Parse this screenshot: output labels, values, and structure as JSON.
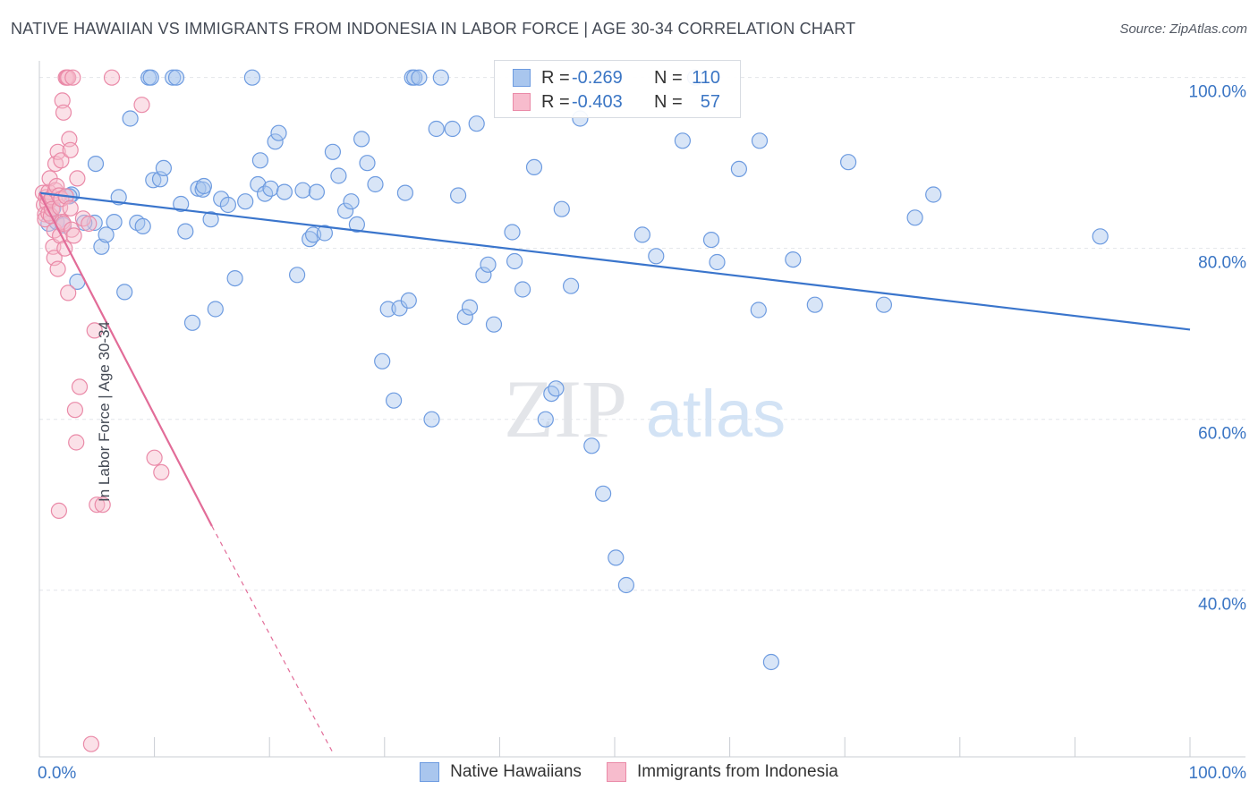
{
  "title": "NATIVE HAWAIIAN VS IMMIGRANTS FROM INDONESIA IN LABOR FORCE | AGE 30-34 CORRELATION CHART",
  "source": "Source: ZipAtlas.com",
  "watermark": {
    "zip": "ZIP",
    "atlas": "atlas"
  },
  "colors": {
    "blue_fill": "#a9c6ee",
    "blue_stroke": "#6d9be0",
    "blue_line": "#3a75cc",
    "pink_fill": "#f7bccd",
    "pink_stroke": "#ea8aa8",
    "pink_line": "#e26c98",
    "axis_text": "#3a75c4",
    "grid": "#e2e5ea"
  },
  "legend": {
    "rows": [
      {
        "r_label": "R =",
        "r_value": "-0.269",
        "n_label": "N =",
        "n_value": "110"
      },
      {
        "r_label": "R =",
        "r_value": "-0.403",
        "n_label": "N =",
        "n_value": "57"
      }
    ]
  },
  "chart_data": {
    "type": "scatter",
    "xlabel": "",
    "ylabel": "In Labor Force | Age 30-34",
    "xlim": [
      0,
      100
    ],
    "ylim": [
      20.5,
      103
    ],
    "x_tick_labels": [
      {
        "value": 0,
        "label": "0.0%"
      },
      {
        "value": 100,
        "label": "100.0%"
      }
    ],
    "y_tick_labels": [
      {
        "value": 100,
        "label": "100.0%"
      },
      {
        "value": 80,
        "label": "80.0%"
      },
      {
        "value": 60,
        "label": "60.0%"
      },
      {
        "value": 40,
        "label": "40.0%"
      }
    ],
    "y_gridlines": [
      100,
      80,
      60,
      40
    ],
    "x_minor_ticks": [
      10,
      20,
      30,
      40,
      50,
      60,
      70,
      80,
      90,
      100
    ],
    "legend_position": "top-center",
    "series": [
      {
        "name": "Native Hawaiians",
        "color": "#a9c6ee",
        "trend": {
          "x0": 0,
          "y0": 86.5,
          "x1": 100,
          "y1": 70.5,
          "style": "solid"
        },
        "points": [
          [
            0.8,
            82.9
          ],
          [
            1.5,
            83.1
          ],
          [
            2.8,
            86.3
          ],
          [
            3.3,
            76.1
          ],
          [
            4.8,
            83.0
          ],
          [
            4.9,
            89.9
          ],
          [
            5.4,
            80.2
          ],
          [
            5.8,
            81.6
          ],
          [
            6.5,
            83.1
          ],
          [
            6.9,
            86.0
          ],
          [
            7.4,
            74.9
          ],
          [
            7.9,
            95.2
          ],
          [
            8.5,
            83.0
          ],
          [
            9.0,
            82.6
          ],
          [
            9.5,
            100.0
          ],
          [
            9.7,
            100.0
          ],
          [
            9.9,
            88.0
          ],
          [
            10.5,
            88.1
          ],
          [
            10.8,
            89.4
          ],
          [
            11.6,
            100.0
          ],
          [
            11.9,
            100.0
          ],
          [
            12.3,
            85.2
          ],
          [
            12.7,
            82.0
          ],
          [
            13.3,
            71.3
          ],
          [
            13.8,
            87.0
          ],
          [
            14.2,
            86.9
          ],
          [
            14.3,
            87.3
          ],
          [
            14.9,
            83.4
          ],
          [
            15.3,
            72.9
          ],
          [
            15.8,
            85.8
          ],
          [
            16.4,
            85.1
          ],
          [
            17.0,
            76.5
          ],
          [
            17.9,
            85.5
          ],
          [
            18.5,
            100.0
          ],
          [
            19.0,
            87.5
          ],
          [
            19.2,
            90.3
          ],
          [
            19.6,
            86.4
          ],
          [
            20.1,
            87.0
          ],
          [
            20.5,
            92.5
          ],
          [
            20.8,
            93.5
          ],
          [
            21.3,
            86.6
          ],
          [
            22.4,
            76.9
          ],
          [
            22.9,
            86.8
          ],
          [
            23.5,
            81.1
          ],
          [
            23.8,
            81.6
          ],
          [
            24.1,
            86.6
          ],
          [
            24.8,
            81.8
          ],
          [
            25.5,
            91.3
          ],
          [
            26.0,
            88.5
          ],
          [
            26.6,
            84.4
          ],
          [
            27.1,
            85.5
          ],
          [
            27.6,
            82.8
          ],
          [
            28.0,
            92.8
          ],
          [
            28.5,
            90.0
          ],
          [
            29.2,
            87.5
          ],
          [
            29.8,
            66.8
          ],
          [
            30.3,
            72.9
          ],
          [
            30.8,
            62.2
          ],
          [
            31.3,
            73.0
          ],
          [
            31.8,
            86.5
          ],
          [
            32.1,
            73.9
          ],
          [
            32.4,
            100.0
          ],
          [
            32.6,
            100.0
          ],
          [
            33.0,
            100.0
          ],
          [
            34.1,
            60.0
          ],
          [
            34.5,
            94.0
          ],
          [
            34.9,
            100.0
          ],
          [
            35.9,
            94.0
          ],
          [
            36.4,
            86.2
          ],
          [
            37.0,
            72.0
          ],
          [
            37.4,
            73.1
          ],
          [
            38.0,
            94.6
          ],
          [
            38.6,
            76.9
          ],
          [
            39.0,
            78.1
          ],
          [
            39.5,
            71.1
          ],
          [
            41.1,
            81.9
          ],
          [
            41.3,
            78.5
          ],
          [
            42.0,
            75.2
          ],
          [
            43.0,
            89.5
          ],
          [
            44.0,
            60.0
          ],
          [
            44.5,
            63.0
          ],
          [
            44.9,
            63.6
          ],
          [
            45.4,
            84.6
          ],
          [
            46.2,
            75.6
          ],
          [
            47.0,
            95.2
          ],
          [
            48.0,
            56.9
          ],
          [
            49.0,
            51.3
          ],
          [
            50.1,
            43.8
          ],
          [
            51.0,
            40.6
          ],
          [
            52.4,
            81.6
          ],
          [
            53.6,
            79.1
          ],
          [
            55.9,
            92.6
          ],
          [
            57.0,
            100.0
          ],
          [
            58.4,
            81.0
          ],
          [
            58.9,
            78.4
          ],
          [
            60.8,
            89.3
          ],
          [
            62.5,
            72.8
          ],
          [
            62.6,
            92.6
          ],
          [
            63.6,
            31.6
          ],
          [
            65.5,
            78.7
          ],
          [
            67.4,
            73.4
          ],
          [
            70.3,
            90.1
          ],
          [
            73.4,
            73.4
          ],
          [
            76.1,
            83.6
          ],
          [
            77.7,
            86.3
          ],
          [
            92.2,
            81.4
          ],
          [
            1.2,
            84.7
          ],
          [
            2.1,
            82.7
          ],
          [
            2.6,
            86.1
          ],
          [
            3.9,
            83.0
          ]
        ]
      },
      {
        "name": "Immigrants from Indonesia",
        "color": "#f7bccd",
        "trend": {
          "x0": 0,
          "y0": 86.5,
          "x1": 15,
          "y1": 47.5,
          "dash_x1": 25.5,
          "dash_y1": 21,
          "style": "solid-then-dashed"
        },
        "points": [
          [
            0.3,
            86.5
          ],
          [
            0.4,
            85.1
          ],
          [
            0.5,
            84.0
          ],
          [
            0.5,
            83.4
          ],
          [
            0.6,
            86.0
          ],
          [
            0.7,
            85.3
          ],
          [
            0.8,
            84.1
          ],
          [
            0.8,
            86.6
          ],
          [
            0.9,
            88.2
          ],
          [
            1.0,
            85.7
          ],
          [
            1.0,
            83.8
          ],
          [
            1.1,
            86.0
          ],
          [
            1.1,
            84.6
          ],
          [
            1.2,
            80.2
          ],
          [
            1.3,
            82.1
          ],
          [
            1.3,
            78.9
          ],
          [
            1.4,
            86.8
          ],
          [
            1.4,
            89.9
          ],
          [
            1.5,
            87.3
          ],
          [
            1.6,
            91.3
          ],
          [
            1.6,
            77.6
          ],
          [
            1.7,
            86.2
          ],
          [
            1.8,
            84.8
          ],
          [
            1.8,
            81.5
          ],
          [
            1.9,
            90.3
          ],
          [
            1.9,
            85.8
          ],
          [
            2.0,
            83.1
          ],
          [
            2.0,
            97.3
          ],
          [
            2.1,
            95.9
          ],
          [
            2.1,
            82.9
          ],
          [
            2.2,
            80.0
          ],
          [
            2.3,
            86.1
          ],
          [
            2.3,
            100.0
          ],
          [
            2.4,
            100.0
          ],
          [
            2.5,
            100.0
          ],
          [
            2.5,
            74.8
          ],
          [
            2.6,
            92.8
          ],
          [
            2.7,
            91.5
          ],
          [
            2.7,
            84.7
          ],
          [
            2.8,
            82.2
          ],
          [
            2.9,
            100.0
          ],
          [
            3.0,
            81.5
          ],
          [
            3.1,
            61.1
          ],
          [
            3.2,
            57.3
          ],
          [
            3.3,
            88.2
          ],
          [
            3.5,
            63.8
          ],
          [
            3.8,
            83.5
          ],
          [
            4.3,
            82.9
          ],
          [
            4.5,
            22.0
          ],
          [
            4.8,
            70.4
          ],
          [
            5.0,
            50.0
          ],
          [
            5.5,
            50.0
          ],
          [
            6.3,
            100.0
          ],
          [
            8.9,
            96.8
          ],
          [
            10.0,
            55.5
          ],
          [
            10.6,
            53.8
          ],
          [
            1.7,
            49.3
          ]
        ]
      }
    ]
  }
}
